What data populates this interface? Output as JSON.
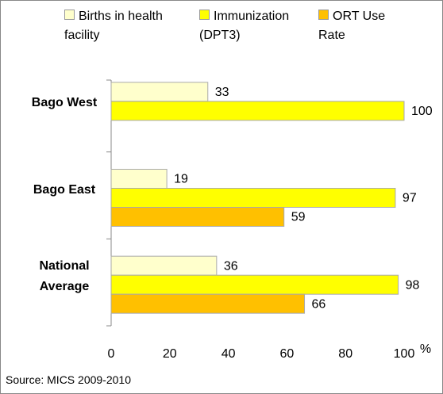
{
  "chart_data": {
    "type": "hbar",
    "categories": [
      "Bago West",
      "Bago East",
      "National Average"
    ],
    "series": [
      {
        "name": "Births in health facility",
        "color": "#ffffcc",
        "values": [
          33,
          19,
          36
        ]
      },
      {
        "name": "Immunization (DPT3)",
        "color": "#ffff00",
        "values": [
          100,
          97,
          98
        ]
      },
      {
        "name": "ORT Use Rate",
        "color": "#ffc000",
        "values": [
          null,
          59,
          66
        ]
      }
    ],
    "xlim": [
      0,
      100
    ],
    "xticks": [
      0,
      20,
      40,
      60,
      80,
      100
    ],
    "x_unit": "%",
    "source": "Source: MICS 2009-2010"
  }
}
